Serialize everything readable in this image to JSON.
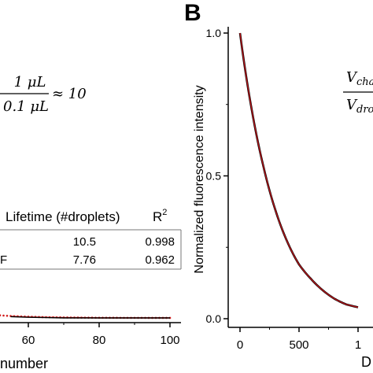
{
  "panel_b_label": "B",
  "equation_left": {
    "numerator": "1 μL",
    "denominator": "0.1 μL",
    "approx": "≈ 10"
  },
  "equation_right": {
    "numerator": "V",
    "numerator_sub": "cha",
    "denominator": "V",
    "denominator_sub": "dro"
  },
  "fit_table": {
    "headers": [
      "Lifetime (#droplets)",
      "R"
    ],
    "r_superscript": "2",
    "rows": [
      {
        "label": "",
        "lifetime": "10.5",
        "r2": "0.998"
      },
      {
        "label": "F",
        "lifetime": "7.76",
        "r2": "0.962"
      }
    ]
  },
  "chart_data": [
    {
      "type": "scatter",
      "panel": "A",
      "xlabel": "number",
      "x_ticks": [
        "60",
        "80",
        "100"
      ],
      "series": [
        {
          "color": "#d11b1b",
          "x": [
            50,
            55,
            60,
            65,
            70,
            75,
            80,
            85,
            90,
            95,
            100
          ],
          "y": [
            0.01,
            0.005,
            0.003,
            0.002,
            0.001,
            0.001,
            0.0,
            0.0,
            0.0,
            0.0,
            0.0
          ]
        },
        {
          "color": "#000000",
          "x": [
            50,
            55,
            60,
            65,
            70,
            75,
            80,
            85,
            90,
            95,
            100
          ],
          "y": [
            0.008,
            0.004,
            0.002,
            0.001,
            0.0,
            0.0,
            0.0,
            0.0,
            0.0,
            0.0,
            0.0
          ]
        }
      ]
    },
    {
      "type": "line",
      "panel": "B",
      "ylabel": "Normalized fluorescence intensity",
      "xlabel": "D",
      "y_ticks": [
        "0.0",
        "0.5",
        "1.0"
      ],
      "x_ticks": [
        "0",
        "500",
        "1"
      ],
      "ylim": [
        0.0,
        1.0
      ],
      "series": [
        {
          "color": "#000000",
          "x": [
            0,
            100,
            200,
            300,
            400,
            500,
            600,
            700,
            800,
            900,
            1000
          ],
          "y": [
            1.0,
            0.73,
            0.53,
            0.38,
            0.27,
            0.19,
            0.14,
            0.1,
            0.07,
            0.05,
            0.04
          ]
        },
        {
          "color": "#c0161b",
          "x": [
            0,
            100,
            200,
            300,
            400,
            500,
            600,
            700,
            800,
            900,
            1000
          ],
          "y": [
            1.0,
            0.73,
            0.53,
            0.38,
            0.27,
            0.19,
            0.14,
            0.1,
            0.07,
            0.05,
            0.04
          ]
        }
      ]
    }
  ]
}
